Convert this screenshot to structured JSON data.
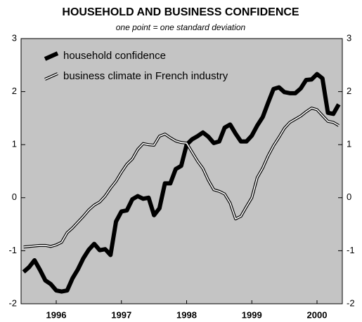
{
  "chart_data": {
    "type": "line",
    "title": "HOUSEHOLD AND BUSINESS CONFIDENCE",
    "subtitle": "one point = one standard deviation",
    "x": [
      1996,
      1996.083,
      1996.167,
      1996.25,
      1996.333,
      1996.417,
      1996.5,
      1996.583,
      1996.667,
      1996.75,
      1996.833,
      1996.917,
      1997,
      1997.083,
      1997.167,
      1997.25,
      1997.333,
      1997.417,
      1997.5,
      1997.583,
      1997.667,
      1997.75,
      1997.833,
      1997.917,
      1998,
      1998.083,
      1998.167,
      1998.25,
      1998.333,
      1998.417,
      1998.5,
      1998.583,
      1998.667,
      1998.75,
      1998.833,
      1998.917,
      1999,
      1999.083,
      1999.167,
      1999.25,
      1999.333,
      1999.417,
      1999.5,
      1999.583,
      1999.667,
      1999.75,
      1999.833,
      1999.917,
      2000,
      2000.083,
      2000.167,
      2000.25,
      2000.333,
      2000.417,
      2000.5,
      2000.583,
      2000.667,
      2000.75,
      2000.833
    ],
    "series": [
      {
        "name": "household confidence",
        "color": "#000000",
        "values": [
          -1.4,
          -1.31,
          -1.18,
          -1.36,
          -1.56,
          -1.63,
          -1.75,
          -1.77,
          -1.75,
          -1.52,
          -1.35,
          -1.14,
          -0.98,
          -0.87,
          -0.99,
          -0.97,
          -1.08,
          -0.45,
          -0.26,
          -0.24,
          -0.03,
          0.03,
          -0.02,
          0.0,
          -0.33,
          -0.2,
          0.27,
          0.27,
          0.54,
          0.6,
          1.0,
          1.1,
          1.16,
          1.23,
          1.15,
          1.03,
          1.06,
          1.32,
          1.38,
          1.21,
          1.06,
          1.06,
          1.17,
          1.36,
          1.52,
          1.79,
          2.05,
          2.08,
          1.99,
          1.97,
          1.97,
          2.06,
          2.22,
          2.23,
          2.33,
          2.25,
          1.6,
          1.58,
          1.76
        ]
      },
      {
        "name": "business climate in French industry",
        "color": "#ffffff",
        "values": [
          -0.93,
          -0.92,
          -0.91,
          -0.9,
          -0.9,
          -0.92,
          -0.89,
          -0.84,
          -0.66,
          -0.57,
          -0.46,
          -0.35,
          -0.23,
          -0.14,
          -0.08,
          0.03,
          0.18,
          0.31,
          0.48,
          0.63,
          0.73,
          0.91,
          1.02,
          1.0,
          0.99,
          1.16,
          1.2,
          1.13,
          1.07,
          1.04,
          1.03,
          0.86,
          0.69,
          0.55,
          0.33,
          0.15,
          0.12,
          0.07,
          -0.1,
          -0.4,
          -0.35,
          -0.17,
          0.0,
          0.38,
          0.56,
          0.79,
          0.98,
          1.14,
          1.31,
          1.42,
          1.48,
          1.54,
          1.62,
          1.69,
          1.66,
          1.55,
          1.44,
          1.42,
          1.36
        ]
      }
    ],
    "xlim": [
      1995.961,
      2000.888
    ],
    "xticks": [
      {
        "value": 1996.5,
        "label": "1996"
      },
      {
        "value": 1997.5,
        "label": "1997"
      },
      {
        "value": 1998.5,
        "label": "1998"
      },
      {
        "value": 1999.5,
        "label": "1999"
      },
      {
        "value": 2000.5,
        "label": "2000"
      }
    ],
    "ylim": [
      -2,
      3
    ],
    "yticks": [
      -2,
      -1,
      0,
      1,
      2,
      3
    ],
    "y2lim": [
      -2,
      3
    ],
    "y2ticks": [
      -2,
      -1,
      0,
      1,
      2,
      3
    ],
    "legend": "upper left",
    "background": "#c4c4c4"
  }
}
